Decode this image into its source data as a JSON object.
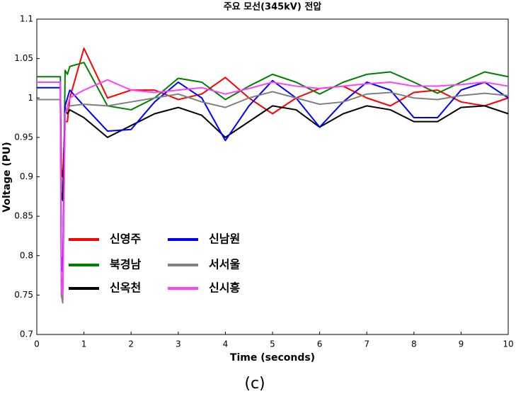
{
  "chart_data": {
    "type": "line",
    "title": "주요 모선(345kV) 전압",
    "x_label": "Time (seconds)",
    "y_label": "Voltage (PU)",
    "caption": "(c)",
    "legend": "lower left",
    "grid": false,
    "xlim": [
      0,
      10
    ],
    "xticks": [
      0,
      1,
      2,
      3,
      4,
      5,
      6,
      7,
      8,
      9,
      10
    ],
    "ylim": [
      0.7,
      1.1
    ],
    "yticks": [
      0.7,
      0.75,
      0.8,
      0.85,
      0.9,
      0.95,
      1,
      1.05,
      1.1
    ],
    "x": [
      0,
      0.5,
      0.52,
      0.55,
      0.6,
      0.65,
      0.7,
      1.0,
      1.5,
      2,
      2.5,
      3,
      3.5,
      4,
      4.5,
      5,
      5.5,
      6,
      6.5,
      7,
      7.5,
      8,
      8.5,
      9,
      9.5,
      10
    ],
    "series": [
      {
        "name": "신영주",
        "color": "#ff0000",
        "values": [
          1.02,
          1.02,
          0.91,
          0.9,
          0.97,
          0.97,
          1.0,
          1.063,
          1.0,
          1.01,
          1.01,
          0.998,
          1.005,
          1.026,
          1.0,
          0.98,
          1.0,
          1.012,
          1.015,
          1.0,
          0.99,
          1.007,
          1.01,
          0.995,
          0.99,
          1.0
        ]
      },
      {
        "name": "북경남",
        "color": "#008000",
        "values": [
          1.027,
          1.027,
          0.77,
          0.76,
          1.035,
          1.03,
          1.04,
          1.045,
          0.99,
          0.985,
          1.0,
          1.025,
          1.02,
          0.998,
          1.015,
          1.03,
          1.02,
          1.005,
          1.02,
          1.03,
          1.033,
          1.02,
          1.006,
          1.02,
          1.033,
          1.027
        ]
      },
      {
        "name": "신옥천",
        "color": "#000000",
        "values": [
          0.998,
          0.998,
          0.88,
          0.87,
          0.985,
          0.98,
          0.985,
          0.975,
          0.95,
          0.965,
          0.98,
          0.988,
          0.978,
          0.95,
          0.97,
          0.99,
          0.985,
          0.963,
          0.98,
          0.99,
          0.985,
          0.97,
          0.97,
          0.988,
          0.99,
          0.98
        ]
      },
      {
        "name": "신남원",
        "color": "#0000ff",
        "values": [
          1.013,
          1.013,
          0.8,
          0.78,
          0.99,
          1.0,
          1.01,
          0.99,
          0.958,
          0.96,
          0.995,
          1.02,
          1.0,
          0.946,
          0.99,
          1.022,
          1.0,
          0.963,
          0.995,
          1.02,
          1.01,
          0.975,
          0.975,
          1.01,
          1.02,
          1.0
        ]
      },
      {
        "name": "서서울",
        "color": "#808080",
        "values": [
          0.998,
          0.998,
          0.75,
          0.74,
          0.98,
          0.985,
          0.99,
          0.992,
          0.99,
          0.995,
          1.0,
          1.005,
          0.995,
          0.988,
          1.0,
          1.008,
          1.0,
          0.992,
          0.995,
          1.005,
          1.007,
          1.0,
          0.998,
          1.003,
          1.006,
          1.003
        ]
      },
      {
        "name": "신시흥",
        "color": "#ff40ff",
        "values": [
          1.02,
          1.02,
          0.76,
          0.75,
          0.98,
          0.99,
          1.0,
          1.01,
          1.023,
          1.01,
          1.007,
          1.01,
          1.013,
          1.005,
          1.012,
          1.02,
          1.015,
          1.012,
          1.015,
          1.018,
          1.02,
          1.015,
          1.015,
          1.017,
          1.02,
          1.015
        ]
      }
    ]
  }
}
